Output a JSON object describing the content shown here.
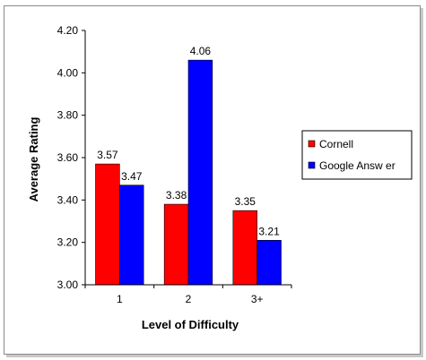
{
  "chart_data": {
    "type": "bar",
    "title": "",
    "xlabel": "Level of Difficulty",
    "ylabel": "Average Rating",
    "categories": [
      "1",
      "2",
      "3+"
    ],
    "series": [
      {
        "name": "Cornell",
        "values": [
          3.57,
          3.38,
          3.35
        ],
        "labels": [
          "3.57",
          "3.38",
          "3.35"
        ],
        "color": "#ff0000"
      },
      {
        "name": "Google Answer",
        "values": [
          3.47,
          4.06,
          3.21
        ],
        "labels": [
          "3.47",
          "4.06",
          "3.21"
        ],
        "color": "#0000ff"
      }
    ],
    "ylim": [
      3.0,
      4.2
    ],
    "yticks": [
      "3.00",
      "3.20",
      "3.40",
      "3.60",
      "3.80",
      "4.00",
      "4.20"
    ],
    "grid": false,
    "legend_position": "right",
    "legend_labels": [
      "Cornell",
      "Google Answ er"
    ]
  }
}
